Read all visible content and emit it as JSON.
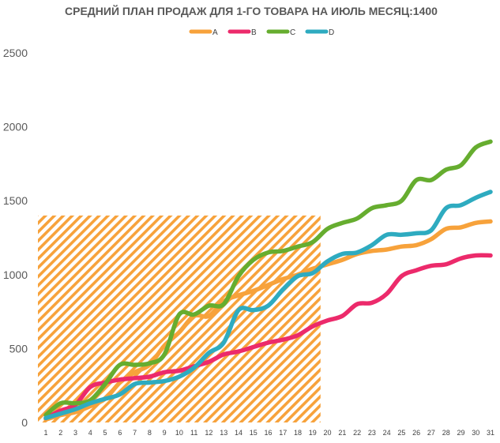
{
  "chart_data": {
    "type": "line",
    "title": "СРЕДНИЙ ПЛАН ПРОДАЖ ДЛЯ 1-ГО ТОВАРА НА ИЮЛЬ МЕСЯЦ:1400",
    "xlabel": "",
    "ylabel": "",
    "x": [
      1,
      2,
      3,
      4,
      5,
      6,
      7,
      8,
      9,
      10,
      11,
      12,
      13,
      14,
      15,
      16,
      17,
      18,
      19,
      20,
      21,
      22,
      23,
      24,
      25,
      26,
      27,
      28,
      29,
      30,
      31
    ],
    "ylim": [
      0,
      2500
    ],
    "yticks": [
      0,
      500,
      1000,
      1500,
      2000,
      2500
    ],
    "grid": false,
    "legend_position": "top-center",
    "highlight_region": {
      "x_from": 1,
      "x_to": 19,
      "y_to": 1400,
      "color": "#f7a23b",
      "pattern": "diagonal-hatch"
    },
    "series": [
      {
        "name": "A",
        "color": "#f7a23b",
        "values": [
          20,
          50,
          70,
          110,
          160,
          270,
          340,
          390,
          520,
          610,
          720,
          720,
          820,
          860,
          890,
          930,
          970,
          1000,
          1040,
          1070,
          1100,
          1140,
          1160,
          1170,
          1190,
          1200,
          1240,
          1310,
          1320,
          1350,
          1360
        ]
      },
      {
        "name": "B",
        "color": "#ec2a6b",
        "values": [
          30,
          80,
          120,
          240,
          270,
          290,
          300,
          310,
          340,
          350,
          380,
          410,
          460,
          480,
          510,
          540,
          560,
          590,
          650,
          690,
          720,
          800,
          810,
          870,
          990,
          1030,
          1060,
          1070,
          1110,
          1130,
          1130
        ]
      },
      {
        "name": "C",
        "color": "#66ad2f",
        "values": [
          50,
          130,
          130,
          150,
          260,
          390,
          390,
          400,
          460,
          730,
          730,
          790,
          800,
          990,
          1100,
          1150,
          1160,
          1190,
          1220,
          1310,
          1350,
          1380,
          1450,
          1470,
          1500,
          1640,
          1640,
          1710,
          1740,
          1860,
          1900
        ]
      },
      {
        "name": "D",
        "color": "#2eabc0",
        "values": [
          30,
          60,
          90,
          130,
          160,
          190,
          260,
          270,
          280,
          310,
          370,
          470,
          540,
          760,
          760,
          790,
          900,
          990,
          1010,
          1090,
          1140,
          1150,
          1200,
          1270,
          1270,
          1280,
          1300,
          1450,
          1470,
          1520,
          1560
        ]
      }
    ]
  }
}
